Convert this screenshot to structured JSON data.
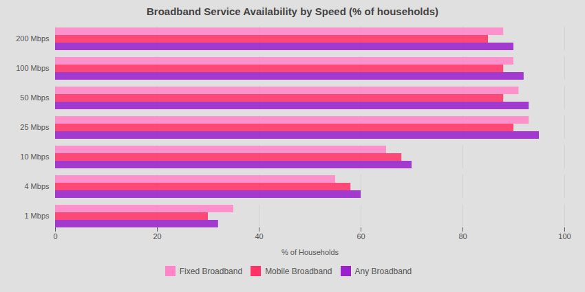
{
  "chart_data": {
    "type": "bar",
    "orientation": "horizontal",
    "title": "Broadband Service Availability by Speed (% of households)",
    "categories": [
      "200 Mbps",
      "100 Mbps",
      "50 Mbps",
      "25 Mbps",
      "10 Mbps",
      "4 Mbps",
      "1 Mbps"
    ],
    "series": [
      {
        "name": "Fixed Broadband",
        "color": "#FF85C8",
        "values": [
          88,
          90,
          91,
          93,
          65,
          55,
          35
        ]
      },
      {
        "name": "Mobile Broadband",
        "color": "#FF3366",
        "values": [
          85,
          88,
          88,
          90,
          68,
          58,
          30
        ]
      },
      {
        "name": "Any Broadband",
        "color": "#9922CC",
        "values": [
          90,
          92,
          93,
          95,
          70,
          60,
          32
        ]
      }
    ],
    "xlim": [
      0,
      100
    ],
    "xticks": [
      0,
      20,
      40,
      60,
      80,
      100
    ],
    "xlabel": "% of Households",
    "grid": true,
    "legend": "bottom"
  }
}
